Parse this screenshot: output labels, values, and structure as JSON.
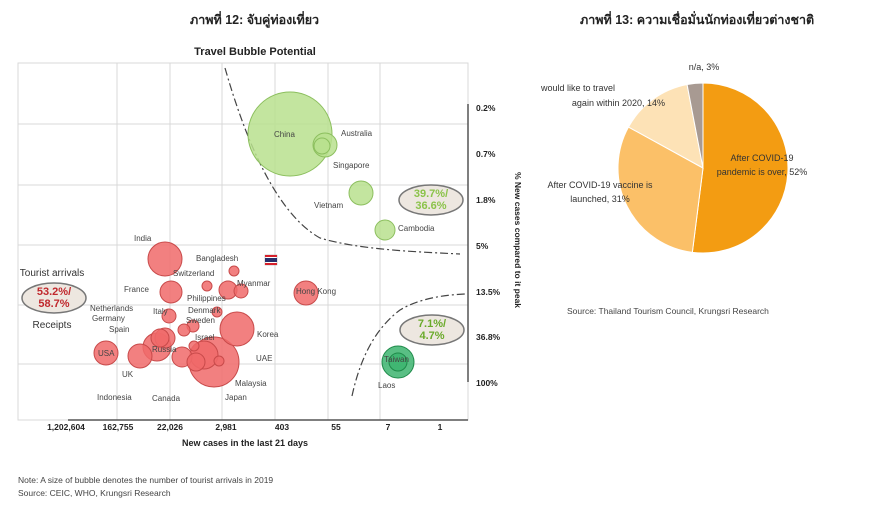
{
  "figures": {
    "left_title": "ภาพที่ 12: จับคู่ท่องเที่ยว",
    "right_title": "ภาพที่ 13: ความเชื่อมั่นนักท่องเที่ยวต่างชาติ"
  },
  "colors": {
    "red_bubble": "#f06a6a",
    "green_bubble": "#b8e08e",
    "dark_green_bubble": "#3cb46e",
    "pie_orange": "#f39c12",
    "pie_light_orange": "#fbc068",
    "pie_cream": "#fde2b6",
    "pie_grey": "#a89a92"
  },
  "chart_data": [
    {
      "type": "scatter",
      "title": "Travel Bubble Potential",
      "xlabel": "New cases in the last 21 days",
      "ylabel": "% New cases compared to it peak",
      "x_ticks": [
        "1,202,604",
        "162,755",
        "22,026",
        "2,981",
        "403",
        "55",
        "7",
        "1"
      ],
      "y_ticks": [
        "0.2%",
        "0.7%",
        "1.8%",
        "5%",
        "13.5%",
        "36.8%",
        "100%"
      ],
      "series": [
        {
          "points": [
            {
              "label": "China",
              "group": "green",
              "size": "large"
            },
            {
              "label": "Australia",
              "group": "green",
              "size": "small"
            },
            {
              "label": "Singapore",
              "group": "green",
              "size": "small"
            },
            {
              "label": "Vietnam",
              "group": "green",
              "size": "small"
            },
            {
              "label": "Cambodia",
              "group": "green",
              "size": "small"
            },
            {
              "label": "Taiwan",
              "group": "dark_green",
              "size": "small"
            },
            {
              "label": "Laos",
              "group": "dark_green",
              "size": "small"
            },
            {
              "label": "India",
              "group": "red",
              "size": "medium"
            },
            {
              "label": "Bangladesh",
              "group": "red",
              "size": "tiny"
            },
            {
              "label": "Switzerland",
              "group": "red",
              "size": "tiny"
            },
            {
              "label": "Myanmar",
              "group": "red",
              "size": "tiny"
            },
            {
              "label": "France",
              "group": "red",
              "size": "small"
            },
            {
              "label": "Philippines",
              "group": "red",
              "size": "small"
            },
            {
              "label": "Hong Kong",
              "group": "red",
              "size": "small"
            },
            {
              "label": "Denmark",
              "group": "red",
              "size": "tiny"
            },
            {
              "label": "Netherlands",
              "group": "red",
              "size": "tiny"
            },
            {
              "label": "Italy",
              "group": "red",
              "size": "small"
            },
            {
              "label": "Germany",
              "group": "red",
              "size": "small"
            },
            {
              "label": "Sweden",
              "group": "red",
              "size": "tiny"
            },
            {
              "label": "Spain",
              "group": "red",
              "size": "small"
            },
            {
              "label": "Israel",
              "group": "red",
              "size": "tiny"
            },
            {
              "label": "Korea",
              "group": "red",
              "size": "medium"
            },
            {
              "label": "USA",
              "group": "red",
              "size": "small"
            },
            {
              "label": "Russia",
              "group": "red",
              "size": "medium"
            },
            {
              "label": "UAE",
              "group": "red",
              "size": "tiny"
            },
            {
              "label": "UK",
              "group": "red",
              "size": "small"
            },
            {
              "label": "Malaysia",
              "group": "red",
              "size": "large"
            },
            {
              "label": "Indonesia",
              "group": "red",
              "size": "small"
            },
            {
              "label": "Canada",
              "group": "red",
              "size": "small"
            },
            {
              "label": "Japan",
              "group": "red",
              "size": "medium"
            }
          ]
        }
      ],
      "annotations": {
        "tourist_arrivals_label": "Tourist arrivals",
        "receipts_label": "Receipts",
        "red_group_share": "53.2%/ 58.7%",
        "upper_green_share": "39.7%/ 36.6%",
        "lower_green_share": "7.1%/ 4.7%"
      },
      "grid": true
    },
    {
      "type": "pie",
      "slices": [
        {
          "label": "After COVID-19 pandemic is over, 52%",
          "value": 52,
          "color": "#f39c12"
        },
        {
          "label": "After COVID-19 vaccine is launched, 31%",
          "value": 31,
          "color": "#fbc068"
        },
        {
          "label": "I would like to travel again within 2020, 14%",
          "value": 14,
          "color": "#fde2b6"
        },
        {
          "label": "n/a, 3%",
          "value": 3,
          "color": "#a89a92"
        }
      ],
      "source": "Source: Thailand Tourism Council, Krungsri Research"
    }
  ],
  "notes": {
    "note": "Note: A size of bubble denotes the number of tourist arrivals in 2019",
    "source": "Source: CEIC, WHO, Krungsri Research"
  }
}
